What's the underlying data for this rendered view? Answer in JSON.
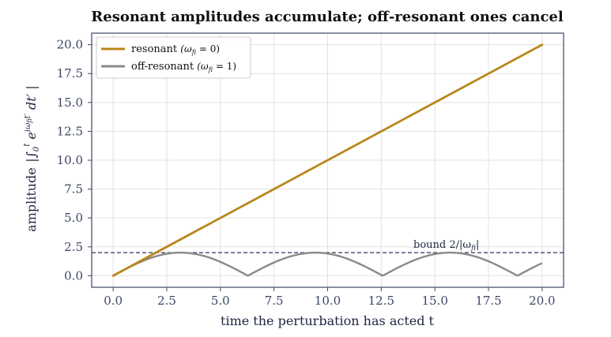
{
  "chart_data": {
    "type": "line",
    "title": "Resonant amplitudes accumulate; off-resonant ones cancel",
    "xlabel": "time the perturbation has acted  t",
    "ylabel_text": "amplitude",
    "ylabel_formula": "|∫₀ᵗ e^{iω_fi t′} dt′|",
    "xlim": [
      -1.0,
      21.0
    ],
    "ylim": [
      -1.0,
      21.0
    ],
    "xticks": [
      0.0,
      2.5,
      5.0,
      7.5,
      10.0,
      12.5,
      15.0,
      17.5,
      20.0
    ],
    "yticks": [
      0.0,
      2.5,
      5.0,
      7.5,
      10.0,
      12.5,
      15.0,
      17.5,
      20.0
    ],
    "grid": true,
    "legend_position": "top-left",
    "series": [
      {
        "name": "resonant  (ω_fi = 0)",
        "name_main": "resonant",
        "name_math": "(ω",
        "name_sub": "fi",
        "name_tail": " = 0)",
        "color": "#b8861b",
        "x": [
          0,
          20
        ],
        "y": [
          0,
          20
        ]
      },
      {
        "name": "off-resonant  (ω_fi = 1)",
        "name_main": "off-resonant",
        "name_math": "(ω",
        "name_sub": "fi",
        "name_tail": " = 1)",
        "color": "#8a8a8a",
        "function": "2|sin(t/2)|",
        "x_start": 0,
        "x_end": 20
      }
    ],
    "bound": {
      "y": 2.0,
      "color": "#2f3556",
      "label_main": "bound 2/|ω",
      "label_sub": "fi",
      "label_tail": "|"
    }
  }
}
